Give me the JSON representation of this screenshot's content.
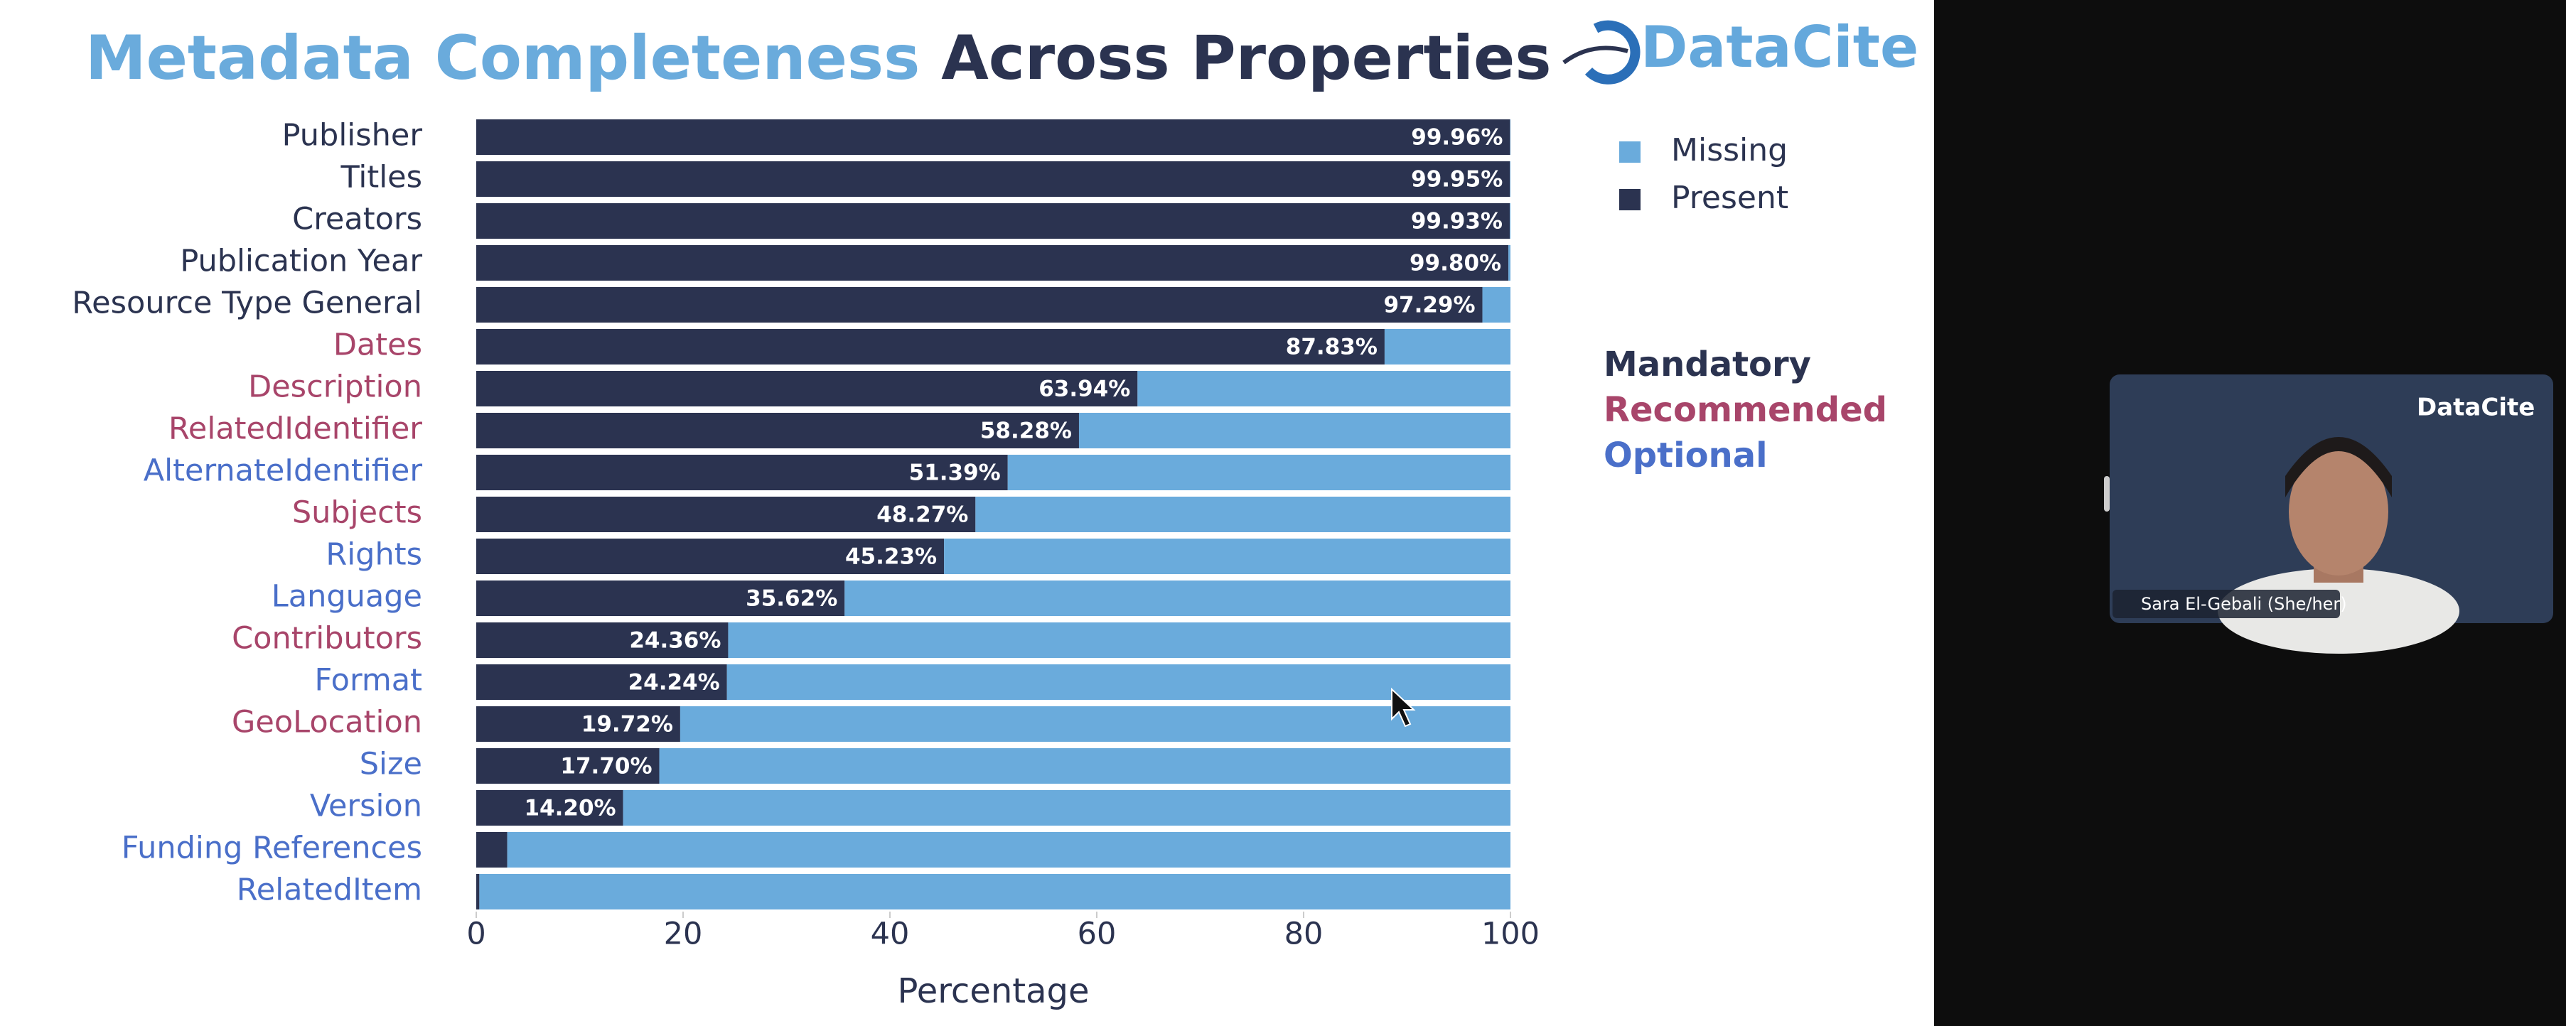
{
  "slide": {
    "logo": "DataCite",
    "property_legend": [
      {
        "name": "Mandatory",
        "color": "#2b3350"
      },
      {
        "name": "Recommended",
        "color": "#a8456a"
      },
      {
        "name": "Optional",
        "color": "#4a6fc9"
      }
    ]
  },
  "call": {
    "tile_logo": "DataCite",
    "participant": "Sara El-Gebali (She/her)"
  },
  "chart_data": {
    "type": "stacked_barh",
    "title": [
      "Metadata Completeness",
      "Across Properties"
    ],
    "title_colors": [
      "#6aabdc",
      "#2b3350"
    ],
    "xlabel": "Percentage",
    "categories": [
      "Publisher",
      "Titles",
      "Creators",
      "Publication Year",
      "Resource Type General",
      "Dates",
      "Description",
      "RelatedIdentifier",
      "AlternateIdentifier",
      "Subjects",
      "Rights",
      "Language",
      "Contributors",
      "Format",
      "GeoLocation",
      "Size",
      "Version",
      "Funding References",
      "RelatedItem"
    ],
    "category_colors": [
      "#2b3350",
      "#2b3350",
      "#2b3350",
      "#2b3350",
      "#2b3350",
      "#a8456a",
      "#a8456a",
      "#a8456a",
      "#4a6fc9",
      "#a8456a",
      "#4a6fc9",
      "#4a6fc9",
      "#a8456a",
      "#4a6fc9",
      "#a8456a",
      "#4a6fc9",
      "#4a6fc9",
      "#4a6fc9",
      "#4a6fc9"
    ],
    "series": [
      {
        "name": "Present",
        "color": "#2b3350",
        "values": [
          99.96,
          99.95,
          99.93,
          99.8,
          97.29,
          87.83,
          63.94,
          58.28,
          51.39,
          48.27,
          45.23,
          35.62,
          24.36,
          24.24,
          19.72,
          17.7,
          14.2,
          3.0,
          0.3
        ],
        "value_labels": [
          "99.96%",
          "99.95%",
          "99.93%",
          "99.80%",
          "97.29%",
          "87.83%",
          "63.94%",
          "58.28%",
          "51.39%",
          "48.27%",
          "45.23%",
          "35.62%",
          "24.36%",
          "24.24%",
          "19.72%",
          "17.70%",
          "14.20%",
          null,
          null
        ]
      },
      {
        "name": "Missing",
        "color": "#6aabdc",
        "values": [
          0.04,
          0.05,
          0.07,
          0.2,
          2.71,
          12.17,
          36.06,
          41.72,
          48.61,
          51.73,
          54.77,
          64.38,
          75.64,
          75.76,
          80.28,
          82.3,
          85.8,
          97.0,
          99.7
        ]
      }
    ],
    "xlim": [
      0,
      100
    ],
    "xticks": [
      0,
      20,
      40,
      60,
      80,
      100
    ]
  }
}
